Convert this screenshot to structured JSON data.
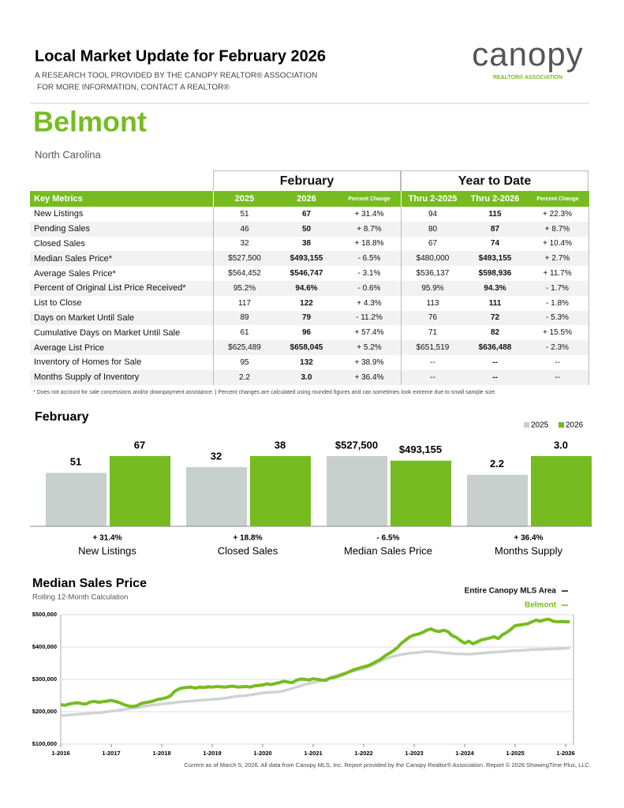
{
  "header": {
    "title": "Local Market Update for February 2026",
    "subtitle_lines": [
      "A RESEARCH TOOL PROVIDED BY THE CANOPY REALTOR® ASSOCIATION",
      "FOR MORE INFORMATION, CONTACT A REALTOR®"
    ]
  },
  "logo": {
    "name": "canopy",
    "tagline": "REALTOR® ASSOCIATION"
  },
  "area": {
    "name": "Belmont",
    "state": "North Carolina"
  },
  "table": {
    "group_headers": [
      "February",
      "Year to Date"
    ],
    "columns": [
      "Key Metrics",
      "2025",
      "2026",
      "Percent Change",
      "Thru 2-2025",
      "Thru 2-2026",
      "Percent Change"
    ],
    "rows": [
      [
        "New Listings",
        "51",
        "67",
        "+ 31.4%",
        "94",
        "115",
        "+ 22.3%"
      ],
      [
        "Pending Sales",
        "46",
        "50",
        "+ 8.7%",
        "80",
        "87",
        "+ 8.7%"
      ],
      [
        "Closed Sales",
        "32",
        "38",
        "+ 18.8%",
        "67",
        "74",
        "+ 10.4%"
      ],
      [
        "Median Sales Price*",
        "$527,500",
        "$493,155",
        "- 6.5%",
        "$480,000",
        "$493,155",
        "+ 2.7%"
      ],
      [
        "Average Sales Price*",
        "$564,452",
        "$546,747",
        "- 3.1%",
        "$536,137",
        "$598,936",
        "+ 11.7%"
      ],
      [
        "Percent of Original List Price Received*",
        "95.2%",
        "94.6%",
        "- 0.6%",
        "95.9%",
        "94.3%",
        "- 1.7%"
      ],
      [
        "List to Close",
        "117",
        "122",
        "+ 4.3%",
        "113",
        "111",
        "- 1.8%"
      ],
      [
        "Days on Market Until Sale",
        "89",
        "79",
        "- 11.2%",
        "76",
        "72",
        "- 5.3%"
      ],
      [
        "Cumulative Days on Market Until Sale",
        "61",
        "96",
        "+ 57.4%",
        "71",
        "82",
        "+ 15.5%"
      ],
      [
        "Average List Price",
        "$625,489",
        "$658,045",
        "+ 5.2%",
        "$651,519",
        "$636,488",
        "- 2.3%"
      ],
      [
        "Inventory of Homes for Sale",
        "95",
        "132",
        "+ 38.9%",
        "--",
        "--",
        "--"
      ],
      [
        "Months Supply of Inventory",
        "2.2",
        "3.0",
        "+ 36.4%",
        "--",
        "--",
        "--"
      ]
    ]
  },
  "footnote": "* Does not account for sale concessions and/or downpayment assistance.  |  Percent changes are calculated using rounded figures and can sometimes look extreme due to small sample size.",
  "footer": "Current as of March 5, 2026. All data from Canopy MLS, Inc. Report provided by the Canopy Realtor® Association. Report © 2026 ShowingTime Plus, LLC.",
  "chart_data": [
    {
      "type": "bar",
      "title": "February",
      "categories": [
        "New Listings",
        "Closed Sales",
        "Median Sales Price",
        "Months Supply"
      ],
      "changes": [
        "+ 31.4%",
        "+ 18.8%",
        "- 6.5%",
        "+ 36.4%"
      ],
      "series": [
        {
          "name": "2025",
          "color": "#c8d0cd",
          "values": [
            51,
            32,
            527500,
            2.2
          ],
          "value_labels": [
            "51",
            "32",
            "$527,500",
            "2.2"
          ]
        },
        {
          "name": "2026",
          "color": "#76bc21",
          "values": [
            67,
            38,
            493155,
            3.0
          ],
          "value_labels": [
            "67",
            "38",
            "$493,155",
            "3.0"
          ]
        }
      ],
      "legend": "top-right"
    },
    {
      "type": "line",
      "title": "Median Sales Price",
      "subtitle": "Rolling 12-Month Calculation",
      "x": [
        "1-2016",
        "2-2016",
        "3-2016",
        "4-2016",
        "5-2016",
        "6-2016",
        "7-2016",
        "8-2016",
        "9-2016",
        "10-2016",
        "11-2016",
        "12-2016",
        "1-2017",
        "2-2017",
        "3-2017",
        "4-2017",
        "5-2017",
        "6-2017",
        "7-2017",
        "8-2017",
        "9-2017",
        "10-2017",
        "11-2017",
        "12-2017",
        "1-2018",
        "2-2018",
        "3-2018",
        "4-2018",
        "5-2018",
        "6-2018",
        "7-2018",
        "8-2018",
        "9-2018",
        "10-2018",
        "11-2018",
        "12-2018",
        "1-2019",
        "2-2019",
        "3-2019",
        "4-2019",
        "5-2019",
        "6-2019",
        "7-2019",
        "8-2019",
        "9-2019",
        "10-2019",
        "11-2019",
        "12-2019",
        "1-2020",
        "2-2020",
        "3-2020",
        "4-2020",
        "5-2020",
        "6-2020",
        "7-2020",
        "8-2020",
        "9-2020",
        "10-2020",
        "11-2020",
        "12-2020",
        "1-2021",
        "2-2021",
        "3-2021",
        "4-2021",
        "5-2021",
        "6-2021",
        "7-2021",
        "8-2021",
        "9-2021",
        "10-2021",
        "11-2021",
        "12-2021",
        "1-2022",
        "2-2022",
        "3-2022",
        "4-2022",
        "5-2022",
        "6-2022",
        "7-2022",
        "8-2022",
        "9-2022",
        "10-2022",
        "11-2022",
        "12-2022",
        "1-2023",
        "2-2023",
        "3-2023",
        "4-2023",
        "5-2023",
        "6-2023",
        "7-2023",
        "8-2023",
        "9-2023",
        "10-2023",
        "11-2023",
        "12-2023",
        "1-2024",
        "2-2024",
        "3-2024",
        "4-2024",
        "5-2024",
        "6-2024",
        "7-2024",
        "8-2024",
        "9-2024",
        "10-2024",
        "11-2024",
        "12-2024",
        "1-2025",
        "2-2025",
        "3-2025",
        "4-2025",
        "5-2025",
        "6-2025",
        "7-2025",
        "8-2025",
        "9-2025",
        "10-2025",
        "11-2025",
        "12-2025",
        "1-2026",
        "2-2026"
      ],
      "series": [
        {
          "name": "Entire Canopy MLS Area",
          "color": "#cfd4d2",
          "values": [
            188000,
            189000,
            190000,
            191000,
            192000,
            193000,
            194000,
            195000,
            196000,
            197000,
            198000,
            200000,
            202000,
            203000,
            205000,
            207000,
            209000,
            211000,
            213000,
            215000,
            217000,
            219000,
            221000,
            222000,
            224000,
            225000,
            226000,
            228000,
            230000,
            231000,
            232000,
            233000,
            234000,
            235000,
            236000,
            237000,
            238000,
            239000,
            240000,
            242000,
            244000,
            246000,
            248000,
            249000,
            250000,
            252000,
            254000,
            256000,
            258000,
            259000,
            260000,
            261000,
            262000,
            265000,
            268000,
            272000,
            276000,
            280000,
            284000,
            287000,
            290000,
            293000,
            296000,
            300000,
            305000,
            310000,
            314000,
            318000,
            321000,
            324000,
            327000,
            330000,
            333000,
            338000,
            344000,
            350000,
            356000,
            362000,
            367000,
            371000,
            374000,
            377000,
            379000,
            381000,
            382000,
            383000,
            385000,
            386000,
            386000,
            385000,
            384000,
            382000,
            381000,
            380000,
            379000,
            379000,
            378000,
            378000,
            379000,
            380000,
            381000,
            382000,
            383000,
            384000,
            385000,
            386000,
            387000,
            388000,
            389000,
            389000,
            390000,
            391000,
            392000,
            392000,
            393000,
            393000,
            394000,
            394000,
            395000,
            395000,
            396000,
            397000
          ]
        },
        {
          "name": "Belmont",
          "color": "#76bc21",
          "values": [
            222000,
            220000,
            224000,
            226000,
            228000,
            225000,
            224000,
            230000,
            232000,
            229000,
            231000,
            233000,
            235000,
            232000,
            228000,
            222000,
            218000,
            216000,
            218000,
            225000,
            228000,
            230000,
            233000,
            238000,
            240000,
            243000,
            248000,
            262000,
            270000,
            274000,
            275000,
            276000,
            273000,
            276000,
            275000,
            277000,
            276000,
            278000,
            277000,
            276000,
            278000,
            279000,
            276000,
            277000,
            278000,
            276000,
            280000,
            281000,
            283000,
            286000,
            284000,
            287000,
            290000,
            294000,
            292000,
            290000,
            297000,
            301000,
            300000,
            298000,
            302000,
            300000,
            298000,
            297000,
            304000,
            306000,
            310000,
            315000,
            320000,
            326000,
            331000,
            335000,
            339000,
            342000,
            348000,
            355000,
            362000,
            372000,
            380000,
            388000,
            398000,
            412000,
            422000,
            432000,
            437000,
            440000,
            445000,
            452000,
            456000,
            450000,
            448000,
            452000,
            448000,
            435000,
            430000,
            420000,
            412000,
            418000,
            410000,
            416000,
            422000,
            425000,
            428000,
            432000,
            426000,
            438000,
            445000,
            455000,
            466000,
            468000,
            470000,
            472000,
            478000,
            483000,
            480000,
            484000,
            486000,
            480000,
            478000,
            479000,
            478000,
            478000
          ]
        }
      ],
      "ylim": [
        100000,
        500000
      ],
      "yticks": [
        {
          "value": 100000,
          "label": "$100,000"
        },
        {
          "value": 200000,
          "label": "$200,000"
        },
        {
          "value": 300000,
          "label": "$300,000"
        },
        {
          "value": 400000,
          "label": "$400,000"
        },
        {
          "value": 500000,
          "label": "$500,000"
        }
      ],
      "legend": "top-right"
    }
  ]
}
